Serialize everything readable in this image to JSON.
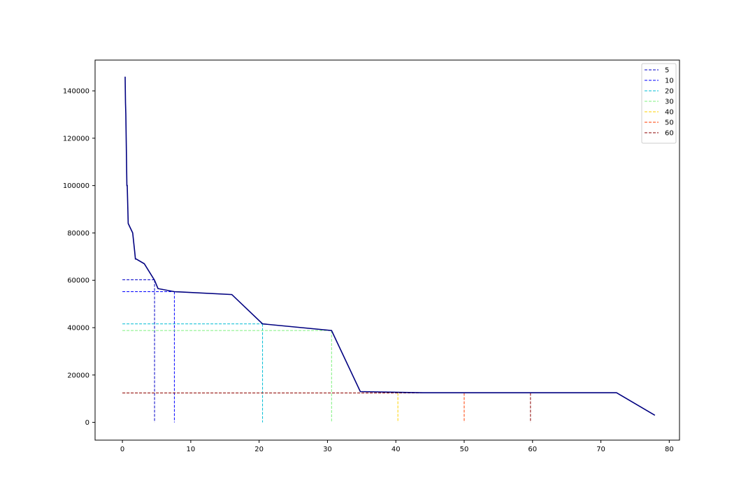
{
  "chart_data": {
    "type": "line",
    "title": "",
    "xlabel": "",
    "ylabel": "",
    "xlim": [
      -4,
      81.5
    ],
    "ylim": [
      -7500,
      153000
    ],
    "xticks": [
      0,
      10,
      20,
      30,
      40,
      50,
      60,
      70,
      80
    ],
    "yticks": [
      0,
      20000,
      40000,
      60000,
      80000,
      100000,
      120000,
      140000
    ],
    "grid": false,
    "legend_position": "top-right",
    "main_series": {
      "color": "#000080",
      "x": [
        0.4,
        0.45,
        0.5,
        0.55,
        0.6,
        0.65,
        0.7,
        0.85,
        1.5,
        1.8,
        1.9,
        2.0,
        3.2,
        4.7,
        5.2,
        7.6,
        16.0,
        20.5,
        30.6,
        34.8,
        44.0,
        72.3,
        77.9
      ],
      "y": [
        146000,
        135000,
        130000,
        120000,
        110000,
        100000,
        100000,
        84000,
        80000,
        72000,
        69000,
        69000,
        67000,
        60000,
        56500,
        55200,
        54000,
        41600,
        38800,
        13000,
        12500,
        12500,
        3000
      ]
    },
    "markers": [
      {
        "label": "5",
        "color": "#0000c8",
        "x": 4.7,
        "y": 60200
      },
      {
        "label": "10",
        "color": "#0000ff",
        "x": 7.6,
        "y": 55200
      },
      {
        "label": "20",
        "color": "#00bcd4",
        "x": 20.5,
        "y": 41600
      },
      {
        "label": "30",
        "color": "#7df07d",
        "x": 30.6,
        "y": 38800
      },
      {
        "label": "40",
        "color": "#ffd200",
        "x": 40.3,
        "y": 12400
      },
      {
        "label": "50",
        "color": "#ff3c00",
        "x": 50.0,
        "y": 12400
      },
      {
        "label": "60",
        "color": "#8b0000",
        "x": 59.7,
        "y": 12400
      }
    ]
  }
}
